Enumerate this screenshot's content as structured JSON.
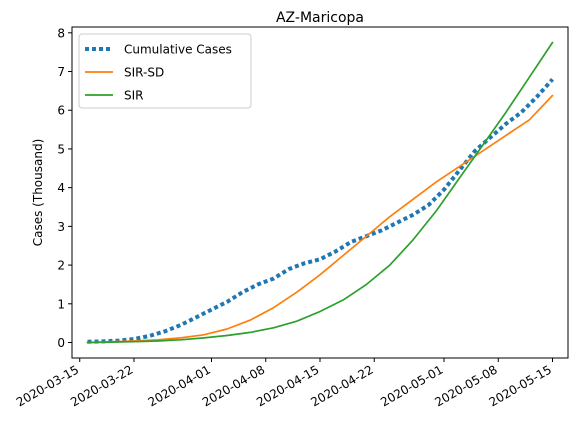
{
  "chart_data": {
    "type": "line",
    "title": "AZ-Maricopa",
    "xlabel": "",
    "ylabel": "Cases (Thousand)",
    "x_axis_type": "date",
    "xlim": [
      "2020-03-14",
      "2020-05-17"
    ],
    "ylim": [
      -0.4,
      8.15
    ],
    "x_ticks": [
      "2020-03-15",
      "2020-03-22",
      "2020-04-01",
      "2020-04-08",
      "2020-04-15",
      "2020-04-22",
      "2020-05-01",
      "2020-05-08",
      "2020-05-15"
    ],
    "y_ticks": [
      0,
      1,
      2,
      3,
      4,
      5,
      6,
      7,
      8
    ],
    "grid": false,
    "legend_position": "upper-left",
    "series": [
      {
        "name": "Cumulative Cases",
        "color": "#1f77b4",
        "style": "dotted",
        "points": [
          [
            "2020-03-16",
            0.02
          ],
          [
            "2020-03-18",
            0.03
          ],
          [
            "2020-03-20",
            0.05
          ],
          [
            "2020-03-22",
            0.09
          ],
          [
            "2020-03-24",
            0.17
          ],
          [
            "2020-03-26",
            0.29
          ],
          [
            "2020-03-28",
            0.45
          ],
          [
            "2020-03-30",
            0.65
          ],
          [
            "2020-04-01",
            0.85
          ],
          [
            "2020-04-03",
            1.05
          ],
          [
            "2020-04-05",
            1.3
          ],
          [
            "2020-04-07",
            1.5
          ],
          [
            "2020-04-09",
            1.65
          ],
          [
            "2020-04-11",
            1.9
          ],
          [
            "2020-04-13",
            2.05
          ],
          [
            "2020-04-15",
            2.15
          ],
          [
            "2020-04-17",
            2.35
          ],
          [
            "2020-04-19",
            2.6
          ],
          [
            "2020-04-21",
            2.75
          ],
          [
            "2020-04-23",
            2.9
          ],
          [
            "2020-04-25",
            3.1
          ],
          [
            "2020-04-27",
            3.3
          ],
          [
            "2020-04-29",
            3.55
          ],
          [
            "2020-05-01",
            3.95
          ],
          [
            "2020-05-03",
            4.45
          ],
          [
            "2020-05-05",
            4.95
          ],
          [
            "2020-05-07",
            5.3
          ],
          [
            "2020-05-09",
            5.65
          ],
          [
            "2020-05-11",
            5.95
          ],
          [
            "2020-05-13",
            6.35
          ],
          [
            "2020-05-15",
            6.8
          ]
        ]
      },
      {
        "name": "SIR-SD",
        "color": "#ff7f0e",
        "style": "solid",
        "points": [
          [
            "2020-03-16",
            0.0
          ],
          [
            "2020-03-19",
            0.02
          ],
          [
            "2020-03-22",
            0.04
          ],
          [
            "2020-03-25",
            0.07
          ],
          [
            "2020-03-28",
            0.12
          ],
          [
            "2020-03-31",
            0.2
          ],
          [
            "2020-04-03",
            0.35
          ],
          [
            "2020-04-06",
            0.58
          ],
          [
            "2020-04-09",
            0.9
          ],
          [
            "2020-04-12",
            1.3
          ],
          [
            "2020-04-15",
            1.75
          ],
          [
            "2020-04-18",
            2.25
          ],
          [
            "2020-04-21",
            2.75
          ],
          [
            "2020-04-24",
            3.25
          ],
          [
            "2020-04-27",
            3.7
          ],
          [
            "2020-04-30",
            4.15
          ],
          [
            "2020-05-03",
            4.55
          ],
          [
            "2020-05-06",
            4.95
          ],
          [
            "2020-05-09",
            5.35
          ],
          [
            "2020-05-12",
            5.75
          ],
          [
            "2020-05-15",
            6.38
          ]
        ]
      },
      {
        "name": "SIR",
        "color": "#2ca02c",
        "style": "solid",
        "points": [
          [
            "2020-03-16",
            0.0
          ],
          [
            "2020-03-19",
            0.01
          ],
          [
            "2020-03-22",
            0.02
          ],
          [
            "2020-03-25",
            0.04
          ],
          [
            "2020-03-28",
            0.07
          ],
          [
            "2020-03-31",
            0.12
          ],
          [
            "2020-04-03",
            0.18
          ],
          [
            "2020-04-06",
            0.26
          ],
          [
            "2020-04-09",
            0.38
          ],
          [
            "2020-04-12",
            0.55
          ],
          [
            "2020-04-15",
            0.8
          ],
          [
            "2020-04-18",
            1.1
          ],
          [
            "2020-04-21",
            1.5
          ],
          [
            "2020-04-24",
            2.0
          ],
          [
            "2020-04-27",
            2.65
          ],
          [
            "2020-04-30",
            3.4
          ],
          [
            "2020-05-03",
            4.25
          ],
          [
            "2020-05-06",
            5.1
          ],
          [
            "2020-05-09",
            5.95
          ],
          [
            "2020-05-12",
            6.85
          ],
          [
            "2020-05-15",
            7.75
          ]
        ]
      }
    ]
  }
}
